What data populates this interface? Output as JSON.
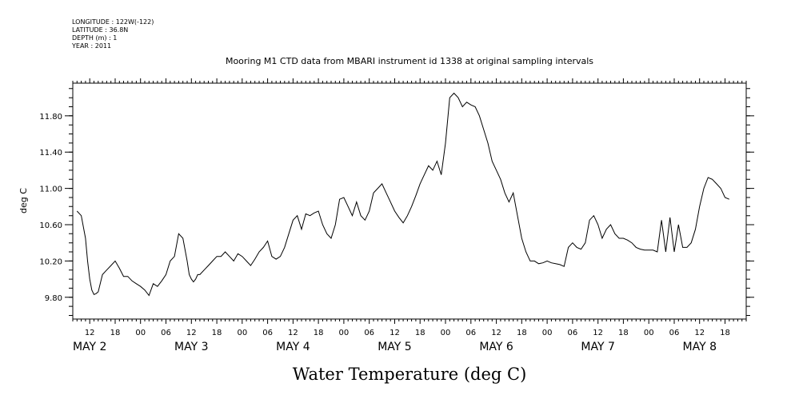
{
  "header": {
    "meta": [
      "LONGITUDE : 122W(-122)",
      "LATITUDE : 36.8N",
      "DEPTH (m) : 1",
      "YEAR : 2011"
    ],
    "title": "Mooring M1 CTD data from MBARI instrument id 1338 at original sampling intervals"
  },
  "chart_data": {
    "type": "line",
    "title": "Mooring M1 CTD data from MBARI instrument id 1338 at original sampling intervals",
    "xlabel": "Water Temperature (deg C)",
    "ylabel": "deg C",
    "xlim": [
      "2011-05-01T08:00",
      "2011-05-08T23:00"
    ],
    "ylim": [
      9.56,
      12.16
    ],
    "yticks": [
      "9.80",
      "10.20",
      "10.60",
      "11.00",
      "11.40",
      "11.80"
    ],
    "xtick_hours": [
      "12",
      "18",
      "00",
      "06",
      "12",
      "18",
      "00",
      "06",
      "12",
      "18",
      "00",
      "06",
      "12",
      "18",
      "00",
      "06",
      "12",
      "18",
      "00",
      "06",
      "12",
      "18",
      "00",
      "06",
      "12",
      "18"
    ],
    "xtick_hour_values": [
      36,
      42,
      48,
      54,
      60,
      66,
      72,
      78,
      84,
      90,
      96,
      102,
      108,
      114,
      120,
      126,
      132,
      138,
      144,
      150,
      156,
      162,
      168,
      174,
      180,
      186
    ],
    "day_labels": [
      "MAY  2",
      "MAY  3",
      "MAY  4",
      "MAY  5",
      "MAY  6",
      "MAY  7",
      "MAY  8"
    ],
    "day_label_hours": [
      36,
      60,
      84,
      108,
      132,
      156,
      180
    ],
    "series": [
      {
        "hours_since_may1": [
          33,
          34,
          35,
          35.5,
          36,
          36.5,
          37,
          37.5,
          38,
          39,
          40,
          41,
          42,
          43,
          44,
          45,
          46,
          47,
          48,
          49,
          50,
          51,
          52,
          53,
          54,
          55,
          56,
          57,
          58,
          59,
          59.5,
          60,
          60.5,
          61,
          61.5,
          62,
          63,
          64,
          65,
          66,
          67,
          68,
          69,
          70,
          71,
          72,
          73,
          74,
          75,
          76,
          77,
          78,
          79,
          80,
          81,
          82,
          83,
          84,
          85,
          86,
          87,
          88,
          89,
          90,
          91,
          92,
          93,
          94,
          95,
          96,
          97,
          98,
          99,
          100,
          101,
          102,
          103,
          104,
          105,
          106,
          107,
          108,
          109,
          110,
          111,
          112,
          113,
          114,
          115,
          116,
          117,
          118,
          119,
          120,
          121,
          122,
          123,
          124,
          125,
          126,
          127,
          128,
          129,
          130,
          131,
          132,
          133,
          134,
          135,
          136,
          137,
          138,
          139,
          140,
          141,
          142,
          143,
          144,
          145,
          146,
          147,
          148,
          149,
          150,
          151,
          152,
          153,
          154,
          155,
          156,
          157,
          158,
          159,
          160,
          161,
          162,
          163,
          164,
          165,
          166,
          167,
          168,
          169,
          170,
          171,
          172,
          173,
          174,
          175,
          176,
          177,
          178,
          179,
          180,
          181,
          182,
          183,
          184,
          185,
          186,
          187,
          188,
          189,
          189.5
        ],
        "values": [
          10.75,
          10.7,
          10.45,
          10.2,
          10.0,
          9.88,
          9.83,
          9.84,
          9.86,
          10.05,
          10.1,
          10.15,
          10.2,
          10.12,
          10.03,
          10.03,
          9.98,
          9.95,
          9.92,
          9.88,
          9.82,
          9.95,
          9.92,
          9.98,
          10.05,
          10.2,
          10.25,
          10.5,
          10.45,
          10.2,
          10.05,
          10.0,
          9.97,
          10.0,
          10.05,
          10.05,
          10.1,
          10.15,
          10.2,
          10.25,
          10.25,
          10.3,
          10.25,
          10.2,
          10.28,
          10.25,
          10.2,
          10.15,
          10.22,
          10.3,
          10.35,
          10.42,
          10.25,
          10.22,
          10.25,
          10.35,
          10.5,
          10.65,
          10.7,
          10.55,
          10.72,
          10.7,
          10.73,
          10.75,
          10.6,
          10.5,
          10.45,
          10.6,
          10.88,
          10.9,
          10.8,
          10.7,
          10.85,
          10.7,
          10.65,
          10.75,
          10.95,
          11.0,
          11.05,
          10.95,
          10.85,
          10.75,
          10.68,
          10.62,
          10.7,
          10.8,
          10.92,
          11.05,
          11.15,
          11.25,
          11.2,
          11.3,
          11.15,
          11.5,
          12.0,
          12.05,
          12.0,
          11.9,
          11.95,
          11.92,
          11.9,
          11.8,
          11.65,
          11.5,
          11.3,
          11.2,
          11.1,
          10.95,
          10.85,
          10.95,
          10.7,
          10.45,
          10.3,
          10.2,
          10.2,
          10.17,
          10.18,
          10.2,
          10.18,
          10.17,
          10.16,
          10.14,
          10.35,
          10.4,
          10.35,
          10.33,
          10.4,
          10.65,
          10.7,
          10.6,
          10.45,
          10.55,
          10.6,
          10.5,
          10.45,
          10.45,
          10.43,
          10.4,
          10.35,
          10.33,
          10.32,
          10.32,
          10.32,
          10.3,
          10.65,
          10.3,
          10.68,
          10.3,
          10.6,
          10.35,
          10.35,
          10.4,
          10.55,
          10.8,
          11.0,
          11.12,
          11.1,
          11.05,
          11.0,
          10.9,
          10.88
        ]
      }
    ]
  }
}
